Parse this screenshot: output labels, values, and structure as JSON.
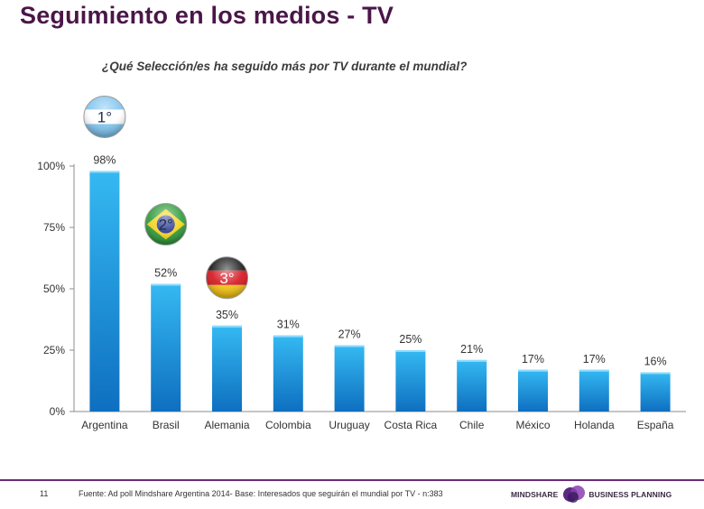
{
  "header": {
    "title": "Seguimiento en los medios - TV"
  },
  "chart_data": {
    "type": "bar",
    "title": "¿Qué Selección/es ha seguido más por TV durante el mundial?",
    "xlabel": "",
    "ylabel": "",
    "ylim": [
      0,
      100
    ],
    "yticks": [
      "0%",
      "25%",
      "50%",
      "75%",
      "100%"
    ],
    "ytick_values": [
      0,
      25,
      50,
      75,
      100
    ],
    "categories": [
      "Argentina",
      "Brasil",
      "Alemania",
      "Colombia",
      "Uruguay",
      "Costa Rica",
      "Chile",
      "México",
      "Holanda",
      "España"
    ],
    "values": [
      98,
      52,
      35,
      31,
      27,
      25,
      21,
      17,
      17,
      16
    ],
    "value_labels": [
      "98%",
      "52%",
      "35%",
      "31%",
      "27%",
      "25%",
      "21%",
      "17%",
      "17%",
      "16%"
    ],
    "bar_color_top": "#35b9f2",
    "bar_color_bottom": "#0e6fc0",
    "grid": false
  },
  "medals": [
    {
      "label": "1°",
      "country": "Argentina",
      "bar_index": 0,
      "flag": "argentina-flag"
    },
    {
      "label": "2°",
      "country": "Brasil",
      "bar_index": 1,
      "flag": "brazil-flag"
    },
    {
      "label": "3°",
      "country": "Alemania",
      "bar_index": 2,
      "flag": "germany-flag"
    }
  ],
  "footer": {
    "page_number": "11",
    "source": "Fuente: Ad poll Mindshare Argentina 2014- Base: Interesados que seguirán el mundial por TV - n:383",
    "logo_left": "MINDSHARE",
    "logo_right": "BUSINESS PLANNING",
    "accent_color": "#6b2a78"
  }
}
